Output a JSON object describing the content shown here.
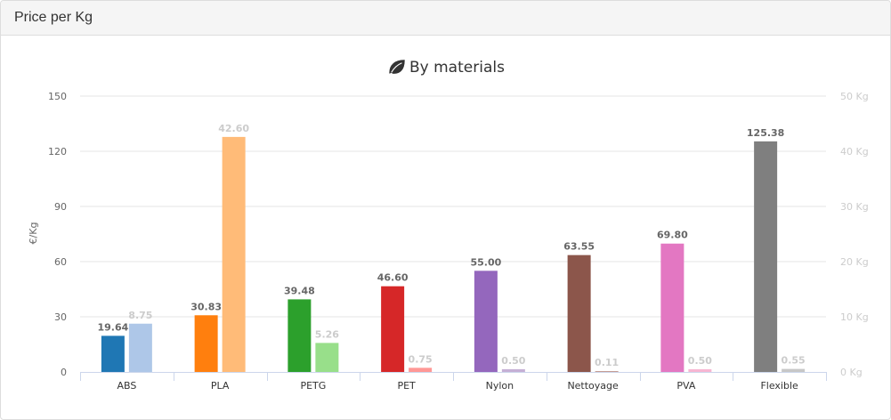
{
  "panel": {
    "title": "Price per Kg"
  },
  "chart_data": {
    "type": "bar",
    "title": "By materials",
    "title_icon": "leaf-icon",
    "ylabel": "€/Kg",
    "ylim": [
      0,
      150
    ],
    "y_ticks": [
      0,
      30,
      60,
      90,
      120,
      150
    ],
    "y2lim": [
      0,
      50
    ],
    "y2_ticks": [
      "0 Kg",
      "10 Kg",
      "20 Kg",
      "30 Kg",
      "40 Kg",
      "50 Kg"
    ],
    "grid": true,
    "categories": [
      "ABS",
      "PLA",
      "PETG",
      "PET",
      "Nylon",
      "Nettoyage",
      "PVA",
      "Flexible"
    ],
    "series": [
      {
        "axis": "left",
        "values": [
          19.64,
          30.83,
          39.48,
          46.6,
          55.0,
          63.55,
          69.8,
          125.38
        ],
        "labels": [
          "19.64",
          "30.83",
          "39.48",
          "46.60",
          "55.00",
          "63.55",
          "69.80",
          "125.38"
        ],
        "colors": [
          "#1f77b4",
          "#ff7f0e",
          "#2ca02c",
          "#d62728",
          "#9467bd",
          "#8c564b",
          "#e377c2",
          "#7f7f7f"
        ]
      },
      {
        "axis": "right",
        "values": [
          8.75,
          42.6,
          5.26,
          0.75,
          0.5,
          0.11,
          0.5,
          0.55
        ],
        "labels": [
          "8.75",
          "42.60",
          "5.26",
          "0.75",
          "0.50",
          "0.11",
          "0.50",
          "0.55"
        ],
        "colors": [
          "#aec7e8",
          "#ffbb78",
          "#98df8a",
          "#ff9896",
          "#c5b0d5",
          "#c49c94",
          "#f7b6d2",
          "#c7c7c7"
        ]
      }
    ]
  }
}
